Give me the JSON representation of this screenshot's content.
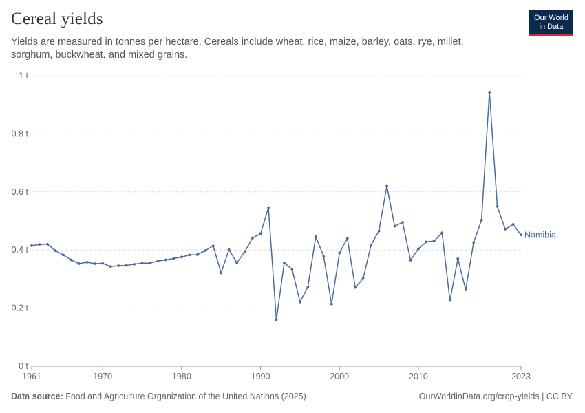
{
  "header": {
    "title": "Cereal yields",
    "subtitle": "Yields are measured in tonnes per hectare. Cereals include wheat, rice, maize, barley, oats, rye, millet, sorghum, buckwheat, and mixed grains."
  },
  "logo": {
    "line1": "Our World",
    "line2": "in Data"
  },
  "footer": {
    "source_label": "Data source:",
    "source_text": "Food and Agriculture Organization of the United Nations (2025)",
    "link": "OurWorldinData.org/crop-yields | CC BY"
  },
  "colors": {
    "series": "#4c6a9c",
    "grid": "#dddddd",
    "axis": "#666666",
    "brand": "#0b2a4e",
    "brand_accent": "#d42b2b"
  },
  "chart_data": {
    "type": "line",
    "title": "Cereal yields",
    "xlabel": "",
    "ylabel": "",
    "xlim": [
      1961,
      2023
    ],
    "ylim": [
      0,
      1
    ],
    "y_ticks": [
      0,
      0.2,
      0.4,
      0.6,
      0.8,
      1
    ],
    "y_tick_labels": [
      "0 t",
      "0.2 t",
      "0.4 t",
      "0.6 t",
      "0.8 t",
      "1 t"
    ],
    "x_ticks": [
      1961,
      1970,
      1980,
      1990,
      2000,
      2010,
      2023
    ],
    "x_tick_labels": [
      "1961",
      "1970",
      "1980",
      "1990",
      "2000",
      "2010",
      "2023"
    ],
    "grid": "horizontal dashed",
    "legend": "end-of-line label",
    "x": [
      1961,
      1962,
      1963,
      1964,
      1965,
      1966,
      1967,
      1968,
      1969,
      1970,
      1971,
      1972,
      1973,
      1974,
      1975,
      1976,
      1977,
      1978,
      1979,
      1980,
      1981,
      1982,
      1983,
      1984,
      1985,
      1986,
      1987,
      1988,
      1989,
      1990,
      1991,
      1992,
      1993,
      1994,
      1995,
      1996,
      1997,
      1998,
      1999,
      2000,
      2001,
      2002,
      2003,
      2004,
      2005,
      2006,
      2007,
      2008,
      2009,
      2010,
      2011,
      2012,
      2013,
      2014,
      2015,
      2016,
      2017,
      2018,
      2019,
      2020,
      2021,
      2022,
      2023
    ],
    "series": [
      {
        "name": "Namibia",
        "values": [
          0.415,
          0.419,
          0.42,
          0.398,
          0.383,
          0.366,
          0.353,
          0.358,
          0.353,
          0.354,
          0.343,
          0.346,
          0.347,
          0.351,
          0.355,
          0.355,
          0.362,
          0.366,
          0.371,
          0.376,
          0.383,
          0.384,
          0.398,
          0.414,
          0.321,
          0.401,
          0.356,
          0.394,
          0.442,
          0.456,
          0.546,
          0.159,
          0.356,
          0.334,
          0.221,
          0.273,
          0.446,
          0.378,
          0.214,
          0.39,
          0.44,
          0.271,
          0.302,
          0.417,
          0.466,
          0.62,
          0.482,
          0.495,
          0.365,
          0.404,
          0.428,
          0.431,
          0.459,
          0.226,
          0.37,
          0.263,
          0.426,
          0.503,
          0.943,
          0.55,
          0.472,
          0.488,
          0.452
        ]
      }
    ]
  }
}
